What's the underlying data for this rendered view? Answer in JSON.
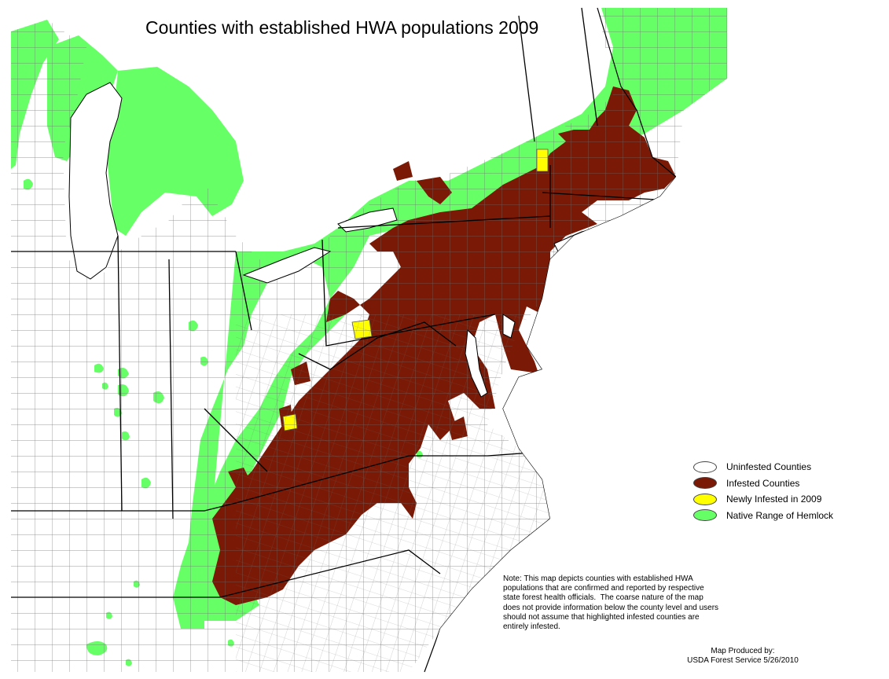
{
  "title": "Counties with established HWA populations 2009",
  "colors": {
    "uninfested": "#ffffff",
    "infested": "#7a1a06",
    "newly_infested": "#ffff00",
    "hemlock": "#66ff66",
    "county_lines": "#555555",
    "state_lines": "#000000"
  },
  "legend": [
    {
      "label": "Uninfested Counties",
      "color": "#ffffff"
    },
    {
      "label": "Infested Counties",
      "color": "#7a1a06"
    },
    {
      "label": "Newly Infested in 2009",
      "color": "#ffff00"
    },
    {
      "label": "Native Range of Hemlock",
      "color": "#66ff66"
    }
  ],
  "note_lines": [
    "Note: This map depicts counties with established HWA",
    "populations that are confirmed and reported by respective",
    "state forest health officials.  The coarse nature of the map",
    "does not provide information below the county level and users",
    "should not assume that highlighted infested counties are",
    "entirely infested."
  ],
  "credit_lines": [
    "Map Produced by:",
    "USDA Forest Service  5/26/2010"
  ]
}
